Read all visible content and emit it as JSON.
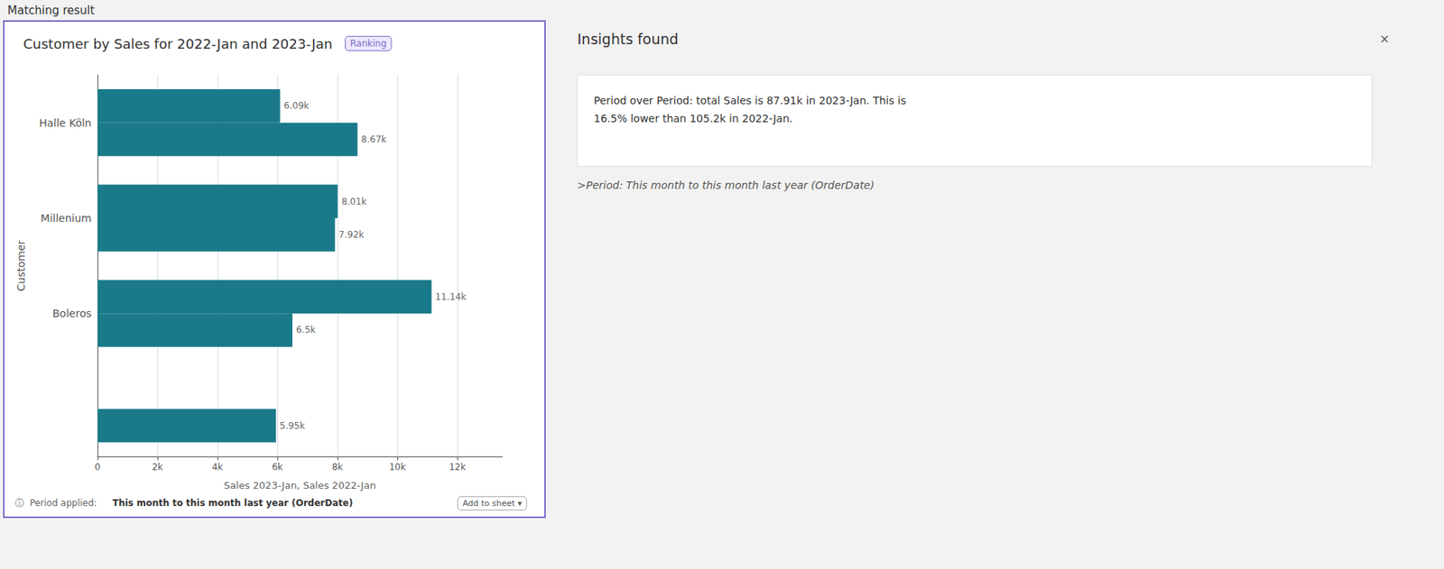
{
  "chart_data": {
    "type": "bar",
    "orientation": "horizontal",
    "title": "Customer by Sales for 2022-Jan and 2023-Jan",
    "xlabel": "Sales 2023-Jan, Sales 2022-Jan",
    "ylabel": "Customer",
    "categories": [
      null,
      "Boleros",
      "Millenium",
      "Halle Köln"
    ],
    "series": [
      {
        "color": "#1a7a8a",
        "values": [
          5950,
          6500,
          7920,
          8670
        ],
        "value_labels": [
          "5.95k",
          "6.5k",
          "7.92k",
          "8.67k"
        ]
      },
      {
        "color": "#1a7a8a",
        "values": [
          0,
          11140,
          8010,
          6090
        ],
        "value_labels": [
          null,
          "11.14k",
          "8.01k",
          "6.09k"
        ]
      }
    ],
    "xlim": [
      0,
      13500
    ],
    "xticks": [
      0,
      {
        "value": 2000,
        "label": "2k"
      },
      {
        "value": 4000,
        "label": "4k"
      },
      {
        "value": 6000,
        "label": "6k"
      },
      {
        "value": 8000,
        "label": "8k"
      },
      {
        "value": 10000,
        "label": "10k"
      },
      {
        "value": 12000,
        "label": "12k"
      }
    ],
    "grid": true,
    "data_labels": true,
    "annotations": [
      "Matching result",
      "Ranking",
      "ⓘ  Period applied: ",
      "This month to this month last year (OrderDate)",
      "Add to sheet ▾",
      "Insights found",
      "✕",
      "Period over Period: total Sales is 87.91k in 2023-Jan. This is\n16.5% lower than 105.2k in 2022-Jan.",
      ">Period: This month to this month last year (OrderDate)"
    ]
  }
}
